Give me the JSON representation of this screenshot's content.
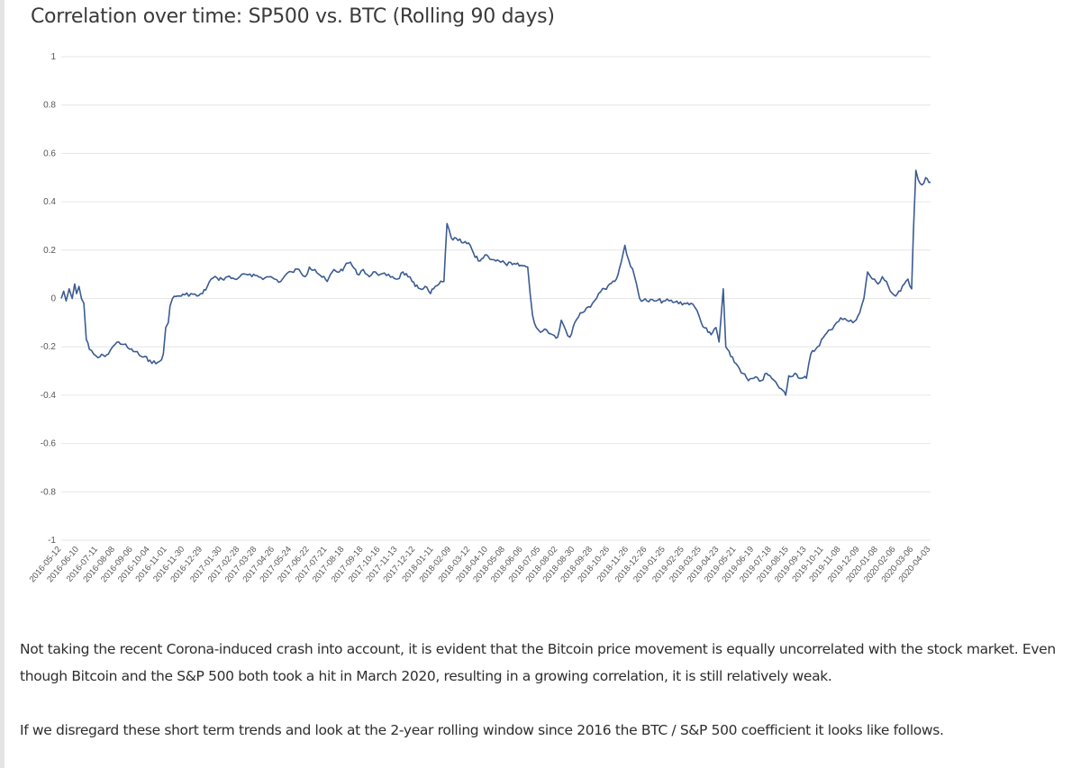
{
  "chart_data": {
    "type": "line",
    "title": "Correlation over time: SP500 vs. BTC (Rolling 90 days)",
    "xlabel": "",
    "ylabel": "",
    "ylim": [
      -1,
      1
    ],
    "y_ticks": [
      "1",
      "0.8",
      "0.6",
      "0.4",
      "0.2",
      "0",
      "-0.2",
      "-0.4",
      "-0.6",
      "-0.8",
      "-1"
    ],
    "grid": true,
    "legend": "none",
    "x_tick_labels": [
      "2016-05-12",
      "2016-06-10",
      "2016-07-11",
      "2016-08-08",
      "2016-09-06",
      "2016-10-04",
      "2016-11-01",
      "2016-11-30",
      "2016-12-29",
      "2017-01-30",
      "2017-02-28",
      "2017-03-28",
      "2017-04-26",
      "2017-05-24",
      "2017-06-22",
      "2017-07-21",
      "2017-08-18",
      "2017-09-18",
      "2017-10-16",
      "2017-11-13",
      "2017-12-12",
      "2018-01-11",
      "2018-02-09",
      "2018-03-12",
      "2018-04-10",
      "2018-05-08",
      "2018-06-06",
      "2018-07-05",
      "2018-08-02",
      "2018-08-30",
      "2018-09-28",
      "2018-10-26",
      "2018-11-26",
      "2018-12-26",
      "2019-01-25",
      "2019-02-25",
      "2019-03-25",
      "2019-04-23",
      "2019-05-21",
      "2019-06-19",
      "2019-07-18",
      "2019-08-15",
      "2019-09-13",
      "2019-10-11",
      "2019-11-08",
      "2019-12-09",
      "2020-01-08",
      "2020-02-06",
      "2020-03-06",
      "2020-04-03"
    ],
    "line_color": "#3b5b92",
    "series": [
      {
        "points": [
          [
            "2016-05-12",
            0.0
          ],
          [
            "2016-05-16",
            0.03
          ],
          [
            "2016-05-20",
            -0.01
          ],
          [
            "2016-05-25",
            0.04
          ],
          [
            "2016-05-30",
            0.0
          ],
          [
            "2016-06-03",
            0.06
          ],
          [
            "2016-06-06",
            0.02
          ],
          [
            "2016-06-10",
            0.05
          ],
          [
            "2016-06-14",
            0.0
          ],
          [
            "2016-06-18",
            -0.02
          ],
          [
            "2016-06-22",
            -0.17
          ],
          [
            "2016-06-27",
            -0.21
          ],
          [
            "2016-07-04",
            -0.23
          ],
          [
            "2016-07-11",
            -0.245
          ],
          [
            "2016-07-20",
            -0.235
          ],
          [
            "2016-07-28",
            -0.23
          ],
          [
            "2016-08-04",
            -0.2
          ],
          [
            "2016-08-08",
            -0.19
          ],
          [
            "2016-08-14",
            -0.18
          ],
          [
            "2016-08-22",
            -0.19
          ],
          [
            "2016-09-01",
            -0.21
          ],
          [
            "2016-09-10",
            -0.22
          ],
          [
            "2016-09-20",
            -0.24
          ],
          [
            "2016-10-04",
            -0.255
          ],
          [
            "2016-10-14",
            -0.27
          ],
          [
            "2016-10-20",
            -0.26
          ],
          [
            "2016-10-26",
            -0.23
          ],
          [
            "2016-10-30",
            -0.12
          ],
          [
            "2016-11-03",
            -0.1
          ],
          [
            "2016-11-06",
            -0.03
          ],
          [
            "2016-11-10",
            0.0
          ],
          [
            "2016-11-18",
            0.01
          ],
          [
            "2016-11-30",
            0.015
          ],
          [
            "2016-12-10",
            0.02
          ],
          [
            "2016-12-20",
            0.01
          ],
          [
            "2016-12-29",
            0.02
          ],
          [
            "2017-01-06",
            0.05
          ],
          [
            "2017-01-12",
            0.08
          ],
          [
            "2017-01-22",
            0.085
          ],
          [
            "2017-01-30",
            0.08
          ],
          [
            "2017-02-08",
            0.09
          ],
          [
            "2017-02-20",
            0.08
          ],
          [
            "2017-02-28",
            0.09
          ],
          [
            "2017-03-10",
            0.1
          ],
          [
            "2017-03-20",
            0.09
          ],
          [
            "2017-03-28",
            0.095
          ],
          [
            "2017-04-10",
            0.085
          ],
          [
            "2017-04-20",
            0.09
          ],
          [
            "2017-04-26",
            0.08
          ],
          [
            "2017-05-06",
            0.07
          ],
          [
            "2017-05-15",
            0.1
          ],
          [
            "2017-05-24",
            0.11
          ],
          [
            "2017-06-05",
            0.12
          ],
          [
            "2017-06-15",
            0.09
          ],
          [
            "2017-06-22",
            0.13
          ],
          [
            "2017-07-01",
            0.12
          ],
          [
            "2017-07-10",
            0.095
          ],
          [
            "2017-07-21",
            0.07
          ],
          [
            "2017-08-01",
            0.12
          ],
          [
            "2017-08-10",
            0.11
          ],
          [
            "2017-08-18",
            0.13
          ],
          [
            "2017-08-28",
            0.15
          ],
          [
            "2017-09-08",
            0.1
          ],
          [
            "2017-09-18",
            0.12
          ],
          [
            "2017-09-28",
            0.09
          ],
          [
            "2017-10-08",
            0.11
          ],
          [
            "2017-10-16",
            0.1
          ],
          [
            "2017-10-26",
            0.095
          ],
          [
            "2017-11-05",
            0.09
          ],
          [
            "2017-11-13",
            0.08
          ],
          [
            "2017-11-22",
            0.11
          ],
          [
            "2017-11-30",
            0.09
          ],
          [
            "2017-12-07",
            0.07
          ],
          [
            "2017-12-12",
            0.05
          ],
          [
            "2017-12-20",
            0.04
          ],
          [
            "2017-12-28",
            0.05
          ],
          [
            "2018-01-06",
            0.02
          ],
          [
            "2018-01-11",
            0.04
          ],
          [
            "2018-01-20",
            0.06
          ],
          [
            "2018-01-28",
            0.07
          ],
          [
            "2018-02-02",
            0.31
          ],
          [
            "2018-02-09",
            0.25
          ],
          [
            "2018-02-20",
            0.24
          ],
          [
            "2018-03-01",
            0.23
          ],
          [
            "2018-03-12",
            0.22
          ],
          [
            "2018-03-20",
            0.17
          ],
          [
            "2018-03-28",
            0.155
          ],
          [
            "2018-04-05",
            0.18
          ],
          [
            "2018-04-10",
            0.175
          ],
          [
            "2018-04-20",
            0.16
          ],
          [
            "2018-05-01",
            0.15
          ],
          [
            "2018-05-08",
            0.145
          ],
          [
            "2018-05-20",
            0.14
          ],
          [
            "2018-06-06",
            0.135
          ],
          [
            "2018-06-14",
            0.13
          ],
          [
            "2018-06-18",
            0.02
          ],
          [
            "2018-06-22",
            -0.07
          ],
          [
            "2018-06-28",
            -0.12
          ],
          [
            "2018-07-05",
            -0.14
          ],
          [
            "2018-07-15",
            -0.13
          ],
          [
            "2018-07-25",
            -0.15
          ],
          [
            "2018-08-02",
            -0.16
          ],
          [
            "2018-08-08",
            -0.09
          ],
          [
            "2018-08-15",
            -0.13
          ],
          [
            "2018-08-22",
            -0.16
          ],
          [
            "2018-08-30",
            -0.1
          ],
          [
            "2018-09-08",
            -0.06
          ],
          [
            "2018-09-18",
            -0.04
          ],
          [
            "2018-09-28",
            -0.02
          ],
          [
            "2018-10-08",
            0.02
          ],
          [
            "2018-10-18",
            0.04
          ],
          [
            "2018-10-26",
            0.06
          ],
          [
            "2018-11-06",
            0.08
          ],
          [
            "2018-11-14",
            0.15
          ],
          [
            "2018-11-20",
            0.22
          ],
          [
            "2018-11-26",
            0.16
          ],
          [
            "2018-12-06",
            0.09
          ],
          [
            "2018-12-14",
            0.0
          ],
          [
            "2018-12-26",
            -0.01
          ],
          [
            "2019-01-10",
            -0.01
          ],
          [
            "2019-01-25",
            -0.01
          ],
          [
            "2019-02-10",
            -0.015
          ],
          [
            "2019-02-25",
            -0.02
          ],
          [
            "2019-03-08",
            -0.02
          ],
          [
            "2019-03-18",
            -0.05
          ],
          [
            "2019-03-25",
            -0.1
          ],
          [
            "2019-04-05",
            -0.14
          ],
          [
            "2019-04-10",
            -0.15
          ],
          [
            "2019-04-18",
            -0.12
          ],
          [
            "2019-04-23",
            -0.18
          ],
          [
            "2019-04-30",
            0.04
          ],
          [
            "2019-05-04",
            -0.2
          ],
          [
            "2019-05-12",
            -0.24
          ],
          [
            "2019-05-21",
            -0.27
          ],
          [
            "2019-06-01",
            -0.31
          ],
          [
            "2019-06-10",
            -0.34
          ],
          [
            "2019-06-19",
            -0.33
          ],
          [
            "2019-07-01",
            -0.34
          ],
          [
            "2019-07-10",
            -0.31
          ],
          [
            "2019-07-18",
            -0.33
          ],
          [
            "2019-07-28",
            -0.36
          ],
          [
            "2019-08-05",
            -0.38
          ],
          [
            "2019-08-10",
            -0.4
          ],
          [
            "2019-08-15",
            -0.32
          ],
          [
            "2019-08-25",
            -0.31
          ],
          [
            "2019-09-05",
            -0.33
          ],
          [
            "2019-09-13",
            -0.33
          ],
          [
            "2019-09-20",
            -0.23
          ],
          [
            "2019-10-01",
            -0.2
          ],
          [
            "2019-10-11",
            -0.16
          ],
          [
            "2019-10-22",
            -0.13
          ],
          [
            "2019-11-01",
            -0.1
          ],
          [
            "2019-11-08",
            -0.08
          ],
          [
            "2019-11-18",
            -0.09
          ],
          [
            "2019-11-28",
            -0.1
          ],
          [
            "2019-12-09",
            -0.06
          ],
          [
            "2019-12-16",
            0.0
          ],
          [
            "2019-12-22",
            0.11
          ],
          [
            "2019-12-30",
            0.08
          ],
          [
            "2020-01-08",
            0.06
          ],
          [
            "2020-01-15",
            0.09
          ],
          [
            "2020-01-22",
            0.07
          ],
          [
            "2020-01-28",
            0.03
          ],
          [
            "2020-02-06",
            0.01
          ],
          [
            "2020-02-14",
            0.03
          ],
          [
            "2020-02-20",
            0.06
          ],
          [
            "2020-02-26",
            0.08
          ],
          [
            "2020-03-03",
            0.04
          ],
          [
            "2020-03-06",
            0.28
          ],
          [
            "2020-03-10",
            0.53
          ],
          [
            "2020-03-14",
            0.49
          ],
          [
            "2020-03-20",
            0.47
          ],
          [
            "2020-03-26",
            0.5
          ],
          [
            "2020-04-03",
            0.48
          ]
        ]
      }
    ]
  },
  "paragraphs": [
    "Not taking the recent Corona-induced crash into account, it is evident that the Bitcoin price movement is equally uncorrelated with the stock market. Even though Bitcoin and the S&P 500 both took a hit in March 2020, resulting in a growing correlation, it is still relatively weak.",
    "If we disregard these short term trends and look at the 2-year rolling window since 2016 the BTC / S&P 500 coefficient it looks like follows."
  ]
}
